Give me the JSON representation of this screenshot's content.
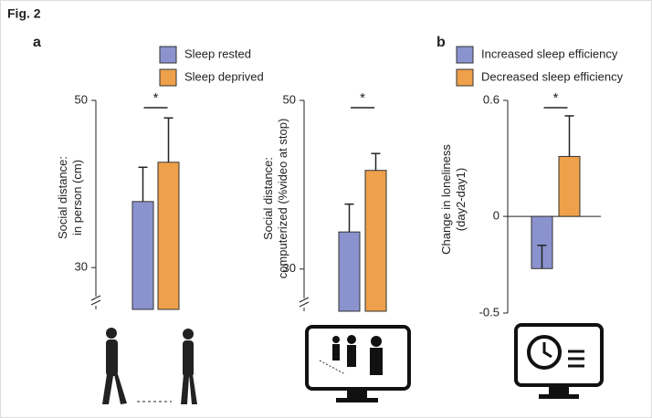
{
  "figure_label": "Fig. 2",
  "chart_data": [
    {
      "type": "bar",
      "panel": "a",
      "ylabel": [
        "Social distance:",
        "in person (cm)"
      ],
      "ylim": [
        25,
        50
      ],
      "yticks": [
        30,
        50
      ],
      "annotation": "*",
      "legend": true,
      "series": [
        {
          "name": "Sleep rested",
          "color": "#8b93cf",
          "values": [
            37.9
          ],
          "errors": [
            4.1
          ]
        },
        {
          "name": "Sleep deprived",
          "color": "#eea04a",
          "values": [
            42.6
          ],
          "errors": [
            5.3
          ]
        }
      ]
    },
    {
      "type": "bar",
      "ylabel": [
        "Social distance:",
        "computerized (%video at stop)"
      ],
      "ylim": [
        25,
        50
      ],
      "yticks": [
        30,
        50
      ],
      "annotation": "*",
      "legend": false,
      "series": [
        {
          "color": "#8b93cf",
          "values": [
            34.4
          ],
          "errors": [
            3.3
          ]
        },
        {
          "color": "#eea04a",
          "values": [
            41.7
          ],
          "errors": [
            2.0
          ]
        }
      ]
    },
    {
      "type": "bar",
      "panel": "b",
      "ylabel": [
        "Change in loneliness",
        "(day2-day1)"
      ],
      "ylim": [
        -0.5,
        0.6
      ],
      "yticks": [
        -0.5,
        0,
        0.6
      ],
      "annotation": "*",
      "legend": true,
      "series": [
        {
          "name": "Increased sleep efficiency",
          "color": "#8b93cf",
          "values": [
            -0.27
          ],
          "errors": [
            0.12
          ]
        },
        {
          "name": "Decreased sleep efficiency",
          "color": "#eea04a",
          "values": [
            0.31
          ],
          "errors": [
            0.21
          ]
        }
      ]
    }
  ]
}
